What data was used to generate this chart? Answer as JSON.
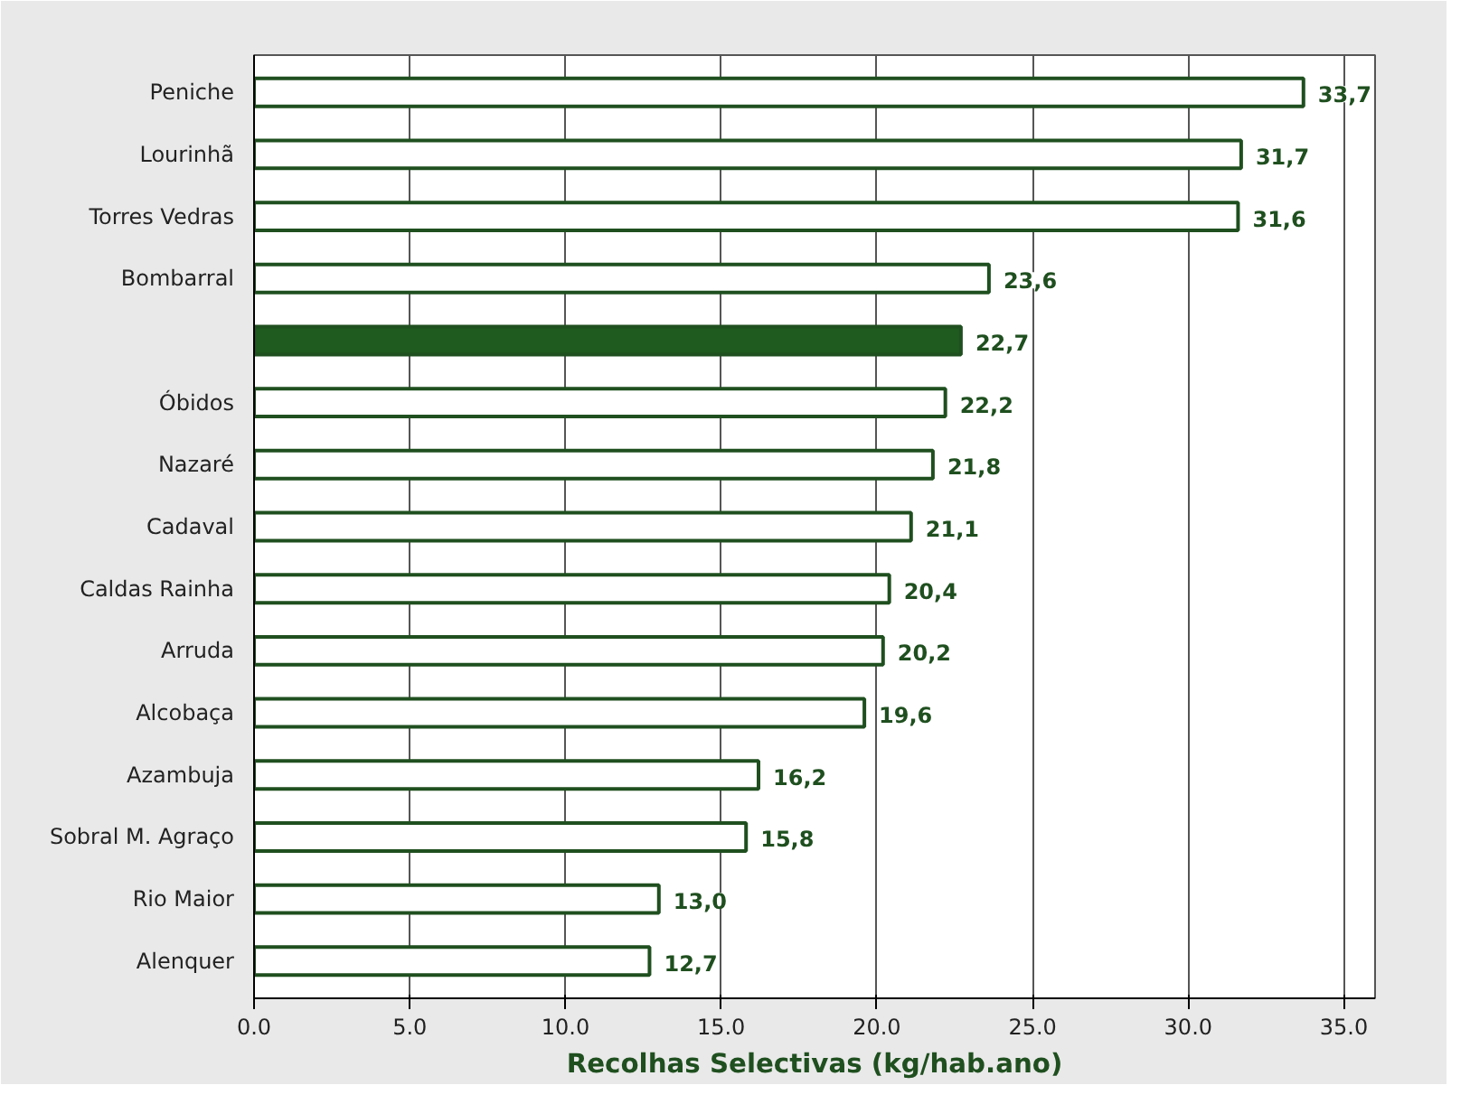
{
  "chart_data": {
    "type": "bar",
    "orientation": "horizontal",
    "xlabel": "Recolhas Selectivas (kg/hab.ano)",
    "categories": [
      "Peniche",
      "Lourinhã",
      "Torres Vedras",
      "Bombarral",
      null,
      "Óbidos",
      "Nazaré",
      "Cadaval",
      "Caldas Rainha",
      "Arruda",
      "Alcobaça",
      "Azambuja",
      "Sobral M. Agraço",
      "Rio Maior",
      "Alenquer"
    ],
    "values": [
      33.7,
      31.7,
      31.6,
      23.6,
      22.7,
      22.2,
      21.8,
      21.1,
      20.4,
      20.2,
      19.6,
      16.2,
      15.8,
      13.0,
      12.7
    ],
    "value_labels": [
      "33,7",
      "31,7",
      "31,6",
      "23,6",
      "22,7",
      "22,2",
      "21,8",
      "21,1",
      "20,4",
      "20,2",
      "19,6",
      "16,2",
      "15,8",
      "13,0",
      "12,7"
    ],
    "colors": [
      "#ffffff",
      "#ffffff",
      "#ffffff",
      "#ffffff",
      "#1f5a1f",
      "#ffffff",
      "#ffffff",
      "#ffffff",
      "#ffffff",
      "#ffffff",
      "#ffffff",
      "#ffffff",
      "#ffffff",
      "#ffffff",
      "#ffffff"
    ],
    "xlim": [
      0,
      36
    ],
    "xticks": [
      {
        "value": 0,
        "label": "0.0"
      },
      {
        "value": 5,
        "label": "5.0"
      },
      {
        "value": 10,
        "label": "10.0"
      },
      {
        "value": 15,
        "label": "15.0"
      },
      {
        "value": 20,
        "label": "20.0"
      },
      {
        "value": 25,
        "label": "25.0"
      },
      {
        "value": 30,
        "label": "30.0"
      },
      {
        "value": 35,
        "label": "35.0"
      }
    ],
    "grid": "x"
  }
}
